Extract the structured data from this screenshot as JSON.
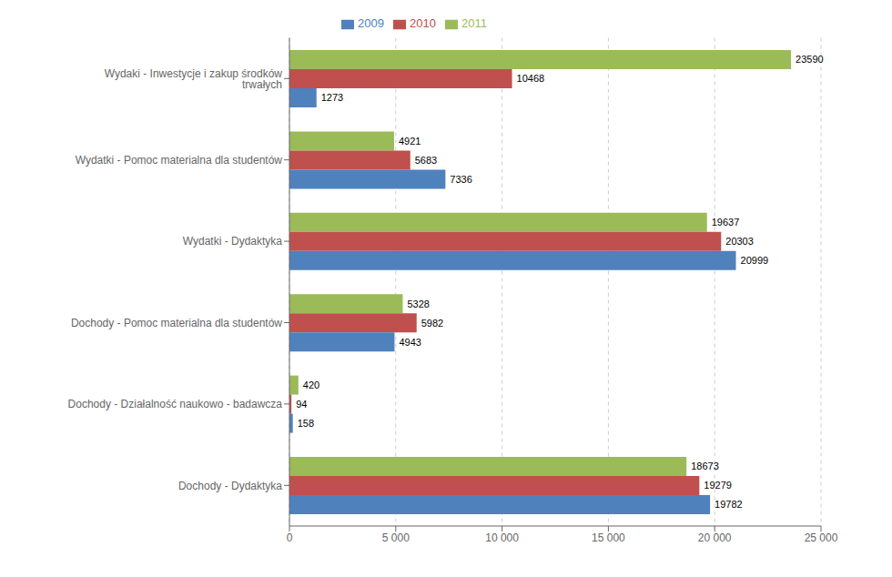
{
  "chart_data": {
    "type": "bar",
    "orientation": "horizontal",
    "categories": [
      "Dochody - Dydaktyka",
      "Dochody - Działalność naukowo - badawcza",
      "Dochody - Pomoc materialna dla studentów",
      "Wydatki - Dydaktyka",
      "Wydatki - Pomoc materialna dla studentów",
      "Wydaki - Inwestycje i zakup środków trwałych"
    ],
    "series": [
      {
        "name": "2011",
        "color": "#9BBB59",
        "values": [
          18673,
          420,
          5328,
          19637,
          4921,
          23590
        ]
      },
      {
        "name": "2010",
        "color": "#C0504D",
        "values": [
          19279,
          94,
          5982,
          20303,
          5683,
          10468
        ]
      },
      {
        "name": "2009",
        "color": "#4F81BD",
        "values": [
          19782,
          158,
          4943,
          20999,
          7336,
          1273
        ]
      }
    ],
    "xlim": [
      0,
      25000
    ],
    "xticks": [
      0,
      {
        "value": 5000,
        "label": "5 000"
      },
      {
        "value": 10000,
        "label": "10 000"
      },
      {
        "value": 15000,
        "label": "15 000"
      },
      {
        "value": 20000,
        "label": "20 000"
      },
      {
        "value": 25000,
        "label": "25 000"
      }
    ],
    "grid": true,
    "legend": "top",
    "data_labels": true
  }
}
